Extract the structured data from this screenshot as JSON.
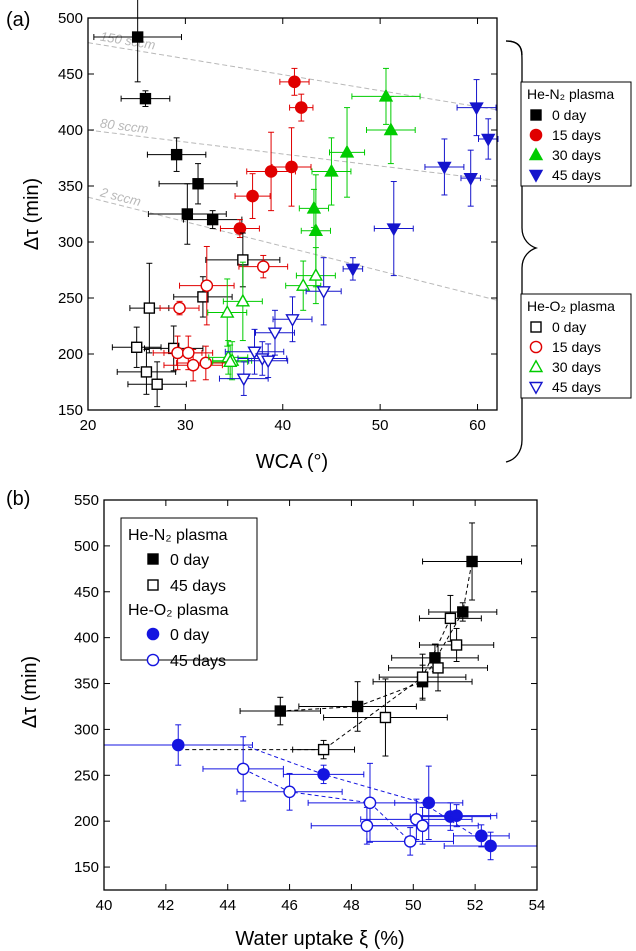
{
  "chart_data": [
    {
      "panel_label": "(a)",
      "type": "scatter",
      "xlabel": "WCA (°)",
      "ylabel": "Δτ (min)",
      "xlim": [
        20,
        62
      ],
      "ylim": [
        150,
        500
      ],
      "xticks": [
        20,
        30,
        40,
        50,
        60
      ],
      "yticks": [
        150,
        200,
        250,
        300,
        350,
        400,
        450,
        500
      ],
      "guide_lines": [
        {
          "label": "150 sccm",
          "x": [
            20,
            62
          ],
          "y": [
            478,
            418
          ]
        },
        {
          "label": "80 sccm",
          "x": [
            20,
            62
          ],
          "y": [
            400,
            355
          ]
        },
        {
          "label": "2 sccm",
          "x": [
            20,
            62
          ],
          "y": [
            340,
            248
          ]
        }
      ],
      "legend_groups": [
        {
          "title": "He-N₂ plasma",
          "entries": [
            "0 day",
            "15 days",
            "30 days",
            "45 days"
          ]
        },
        {
          "title": "He-O₂ plasma",
          "entries": [
            "0 day",
            "15 days",
            "30 days",
            "45 days"
          ]
        }
      ],
      "series": [
        {
          "name": "He-N₂ plasma 0 day",
          "marker": "square",
          "filled": true,
          "color": "#000000",
          "points": [
            [
              25.1,
              483,
              4.5,
              40
            ],
            [
              25.9,
              428,
              2.5,
              7
            ],
            [
              29.1,
              378,
              3,
              15
            ],
            [
              30.2,
              325,
              4,
              27
            ],
            [
              31.3,
              352,
              4,
              18
            ],
            [
              32.8,
              320,
              3,
              8
            ]
          ]
        },
        {
          "name": "He-N₂ plasma 15 days",
          "marker": "circle",
          "filled": true,
          "color": "#e00000",
          "points": [
            [
              41.2,
              443,
              1.5,
              12
            ],
            [
              41.9,
              420,
              1.2,
              12
            ],
            [
              38.8,
              363,
              2.5,
              35
            ],
            [
              36.9,
              341,
              1.8,
              20
            ],
            [
              35.6,
              312,
              2,
              8
            ],
            [
              40.9,
              367,
              2,
              35
            ]
          ]
        },
        {
          "name": "He-N₂ plasma 30 days",
          "marker": "triangle-up",
          "filled": true,
          "color": "#00cc00",
          "points": [
            [
              50.6,
              430,
              3.5,
              25
            ],
            [
              51.1,
              400,
              2.5,
              30
            ],
            [
              46.6,
              380,
              1.8,
              40
            ],
            [
              45,
              363,
              2,
              30
            ],
            [
              43.2,
              330,
              1.5,
              17
            ],
            [
              43.4,
              310,
              1.5,
              50
            ]
          ]
        },
        {
          "name": "He-N₂ plasma 45 days",
          "marker": "triangle-down",
          "filled": true,
          "color": "#1515cc",
          "points": [
            [
              59.9,
              420,
              2,
              25
            ],
            [
              61.1,
              392,
              1,
              18
            ],
            [
              56.6,
              367,
              2,
              25
            ],
            [
              59.3,
              357,
              1,
              25
            ],
            [
              51.4,
              312,
              2,
              42
            ],
            [
              47.2,
              276,
              1,
              10
            ]
          ]
        },
        {
          "name": "He-O₂ plasma 0 day",
          "marker": "square",
          "filled": false,
          "color": "#000000",
          "points": [
            [
              35.9,
              284,
              3.8,
              24
            ],
            [
              31.8,
              251,
              3,
              18
            ],
            [
              26.3,
              241,
              2,
              40
            ],
            [
              25,
              206,
              2.5,
              18
            ],
            [
              28.8,
              205,
              3,
              20
            ],
            [
              26,
              184,
              3,
              20
            ],
            [
              27.1,
              173,
              3,
              20
            ]
          ]
        },
        {
          "name": "He-O₂ plasma 15 days",
          "marker": "circle",
          "filled": false,
          "color": "#e00000",
          "points": [
            [
              38,
              278,
              2.5,
              10
            ],
            [
              32.2,
              261,
              2.8,
              35
            ],
            [
              29.4,
              241,
              2,
              6
            ],
            [
              29.2,
              201,
              2.5,
              15
            ],
            [
              30.3,
              201,
              2.5,
              15
            ],
            [
              30.8,
              190,
              3,
              14
            ],
            [
              32.1,
              192,
              3,
              15
            ]
          ]
        },
        {
          "name": "He-O₂ plasma 30 days",
          "marker": "triangle-up",
          "filled": false,
          "color": "#00cc00",
          "points": [
            [
              43.4,
              270,
              2,
              25
            ],
            [
              42.1,
              261,
              1.8,
              22
            ],
            [
              35.9,
              247,
              2,
              35
            ],
            [
              34.3,
              237,
              2,
              30
            ],
            [
              34.4,
              197,
              2,
              15
            ],
            [
              34.8,
              194,
              2,
              17
            ],
            [
              34.6,
              193,
              1.8,
              15
            ]
          ]
        },
        {
          "name": "He-O₂ plasma 45 days",
          "marker": "triangle-down",
          "filled": false,
          "color": "#1515cc",
          "points": [
            [
              44.2,
              256,
              1.8,
              30
            ],
            [
              41,
              231,
              2,
              20
            ],
            [
              39.2,
              219,
              2,
              20
            ],
            [
              37.1,
              202,
              3,
              20
            ],
            [
              37.9,
              196,
              2.5,
              15
            ],
            [
              38.5,
              194,
              2,
              15
            ],
            [
              36,
              178,
              2.5,
              15
            ]
          ]
        }
      ]
    },
    {
      "panel_label": "(b)",
      "type": "scatter",
      "xlabel": "Water uptake ξ (%)",
      "ylabel": "Δτ (min)",
      "xlim": [
        40,
        54
      ],
      "ylim": [
        125,
        550
      ],
      "xticks": [
        40,
        42,
        44,
        46,
        48,
        50,
        52,
        54
      ],
      "yticks": [
        150,
        200,
        250,
        300,
        350,
        400,
        450,
        500,
        550
      ],
      "legend_groups": [
        {
          "title": "He-N₂ plasma",
          "entries": [
            "0 day",
            "45 days"
          ]
        },
        {
          "title": "He-O₂ plasma",
          "entries": [
            "0 day",
            "45 days"
          ]
        }
      ],
      "series": [
        {
          "name": "He-N₂ plasma 0 day",
          "marker": "square",
          "filled": true,
          "color": "#000000",
          "points": [
            [
              51.9,
              483,
              1.6,
              42
            ],
            [
              51.6,
              428,
              1.1,
              10
            ],
            [
              50.7,
              378,
              1.4,
              15
            ],
            [
              50.3,
              352,
              1.6,
              18
            ],
            [
              48.2,
              325,
              1.9,
              27
            ],
            [
              45.7,
              320,
              1.3,
              15
            ]
          ]
        },
        {
          "name": "He-N₂ plasma 45 days",
          "marker": "square",
          "filled": false,
          "color": "#000000",
          "points": [
            [
              51.2,
              421,
              1,
              25
            ],
            [
              51.4,
              392,
              1.2,
              18
            ],
            [
              50.8,
              367,
              1.6,
              25
            ],
            [
              50.3,
              357,
              1.4,
              25
            ],
            [
              49.1,
              313,
              2,
              42
            ],
            [
              47.1,
              278,
              1,
              10
            ]
          ]
        },
        {
          "name": "He-O₂ plasma 0 day",
          "marker": "circle",
          "filled": true,
          "color": "#1515e0",
          "points": [
            [
              42.4,
              283,
              2.4,
              22
            ],
            [
              47.1,
              251,
              1.3,
              10
            ],
            [
              50.5,
              220,
              1.1,
              40
            ],
            [
              51.2,
              205,
              1.3,
              15
            ],
            [
              51.4,
              206,
              1.3,
              12
            ],
            [
              52.2,
              184,
              0.9,
              12
            ],
            [
              52.5,
              173,
              1.5,
              15
            ]
          ]
        },
        {
          "name": "He-O₂ plasma 45 days",
          "marker": "circle",
          "filled": false,
          "color": "#1515e0",
          "points": [
            [
              44.5,
              257,
              1.3,
              35
            ],
            [
              46,
              232,
              1.7,
              20
            ],
            [
              48.6,
              220,
              2,
              43
            ],
            [
              48.5,
              195,
              1.8,
              20
            ],
            [
              50.1,
              202,
              1.8,
              22
            ],
            [
              50.3,
              195,
              1.8,
              20
            ],
            [
              49.9,
              178,
              1.4,
              15
            ]
          ]
        }
      ],
      "trend_lines": [
        {
          "color": "#000000",
          "x": [
            45.7,
            48.2,
            50.3,
            51.6,
            51.9
          ]
        },
        {
          "color": "#000000",
          "x": [
            42.4,
            47.1,
            50.3,
            51.2
          ]
        },
        {
          "color": "#1515e0",
          "x": [
            42.4,
            44.5,
            47.1,
            50.3,
            52.5
          ]
        },
        {
          "color": "#1515e0",
          "x": [
            44.5,
            46,
            48.6,
            49.9
          ]
        }
      ]
    }
  ]
}
